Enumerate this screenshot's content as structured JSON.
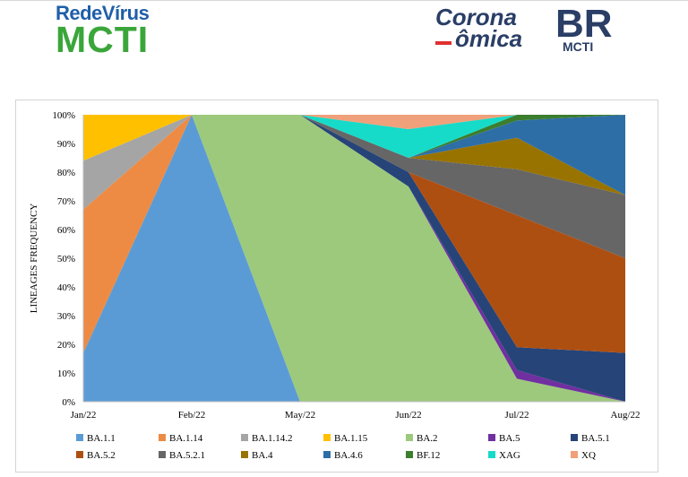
{
  "logos": {
    "left_line1": "RedeVírus",
    "left_line2": "MCTI",
    "right_corona": "Corona",
    "right_omica": "ômica",
    "right_br": "BR",
    "right_mcti": "MCTI"
  },
  "chart_data": {
    "type": "area",
    "stacked": true,
    "ylabel": "LINEAGES FREQUENCY",
    "xlabel": "",
    "ylim": [
      0,
      100
    ],
    "yticks": [
      "0%",
      "10%",
      "20%",
      "30%",
      "40%",
      "50%",
      "60%",
      "70%",
      "80%",
      "90%",
      "100%"
    ],
    "grid": false,
    "legend_position": "bottom",
    "categories": [
      "Jan/22",
      "Feb/22",
      "May/22",
      "Jun/22",
      "Jul/22",
      "Aug/22"
    ],
    "series": [
      {
        "name": "BA.1.1",
        "color": "#5b9bd5",
        "values": [
          17,
          100,
          0,
          0,
          0,
          0
        ]
      },
      {
        "name": "BA.1.14",
        "color": "#ed8b44",
        "values": [
          50,
          0,
          0,
          0,
          0,
          0
        ]
      },
      {
        "name": "BA.1.14.2",
        "color": "#a5a5a5",
        "values": [
          17,
          0,
          0,
          0,
          0,
          0
        ]
      },
      {
        "name": "BA.1.15",
        "color": "#ffc000",
        "values": [
          16,
          0,
          0,
          0,
          0,
          0
        ]
      },
      {
        "name": "BA.2",
        "color": "#9dc97c",
        "values": [
          0,
          0,
          100,
          75,
          8,
          0
        ]
      },
      {
        "name": "BA.5",
        "color": "#7030a0",
        "values": [
          0,
          0,
          0,
          0,
          3,
          0
        ]
      },
      {
        "name": "BA.5.1",
        "color": "#264478",
        "values": [
          0,
          0,
          0,
          5,
          8,
          17
        ]
      },
      {
        "name": "BA.5.2",
        "color": "#ae4f12",
        "values": [
          0,
          0,
          0,
          0,
          46,
          33
        ]
      },
      {
        "name": "BA.5.2.1",
        "color": "#666666",
        "values": [
          0,
          0,
          0,
          5,
          16,
          22
        ]
      },
      {
        "name": "BA.4",
        "color": "#997300",
        "values": [
          0,
          0,
          0,
          0,
          11,
          0
        ]
      },
      {
        "name": "BA.4.6",
        "color": "#2e6ea6",
        "values": [
          0,
          0,
          0,
          0,
          6,
          28
        ]
      },
      {
        "name": "BF.12",
        "color": "#3c7d2e",
        "values": [
          0,
          0,
          0,
          0,
          2,
          0
        ]
      },
      {
        "name": "XAG",
        "color": "#16dbc8",
        "values": [
          0,
          0,
          0,
          10,
          0,
          0
        ]
      },
      {
        "name": "XQ",
        "color": "#f0a07a",
        "values": [
          0,
          0,
          0,
          5,
          0,
          0
        ]
      }
    ]
  }
}
